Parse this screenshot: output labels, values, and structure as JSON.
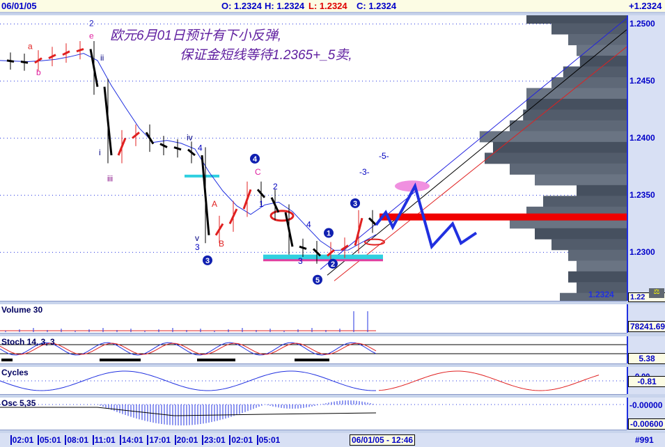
{
  "header": {
    "date": "06/01/05",
    "open": "O: 1.2324",
    "high": "H: 1.2324",
    "low": "L: 1.2324",
    "close": "C: 1.2324",
    "last": "+1.2324"
  },
  "annotation": {
    "line1": "欧元6月01日预计有下小反弹,",
    "line2": "保证金短线等待1.2365+_5卖,"
  },
  "chart_data": {
    "type": "line",
    "price_axis": {
      "ticks": [
        "1.2500",
        "1.2450",
        "1.2400",
        "1.2350",
        "1.2300"
      ],
      "ylim": [
        1.226,
        1.251
      ],
      "current": "1.2324",
      "current_axis": "1.22"
    },
    "time_ticks": [
      "02:01",
      "05:01",
      "08:01",
      "11:01",
      "14:01",
      "17:01",
      "20:01",
      "23:01",
      "02:01",
      "05:01"
    ],
    "cursor_time": "06/01/05 - 12:46",
    "price": [
      1.2468,
      1.2467,
      1.2466,
      1.247,
      1.2473,
      1.2476,
      1.2478,
      1.2445,
      1.2385,
      1.24,
      1.2405,
      1.2395,
      1.2392,
      1.239,
      1.2385,
      1.2315,
      1.2325,
      1.2338,
      1.2355,
      1.2348,
      1.2335,
      1.2305,
      1.2303,
      1.2297,
      1.2302,
      1.2306,
      1.233,
      1.2324
    ],
    "projection": [
      [
        27,
        1.2324
      ],
      [
        27.7,
        1.2335
      ],
      [
        28.2,
        1.2322
      ],
      [
        29.8,
        1.2358
      ],
      [
        31,
        1.2305
      ],
      [
        32.5,
        1.2325
      ],
      [
        33.1,
        1.2308
      ],
      [
        34.2,
        1.2317
      ]
    ],
    "volume_profile": [
      60,
      45,
      35,
      30,
      28,
      38,
      45,
      60,
      60,
      62,
      70,
      88,
      80,
      85,
      70,
      55,
      30,
      50,
      60,
      70,
      55,
      45,
      35,
      30,
      35,
      30,
      40
    ],
    "wave_labels": [
      {
        "t": "2",
        "x": 6.4,
        "p": 1.2498,
        "c": "#2020c0"
      },
      {
        "t": "e",
        "x": 6.4,
        "p": 1.2487,
        "c": "#e020a0"
      },
      {
        "t": "a",
        "x": 2,
        "p": 1.2478,
        "c": "#e02020"
      },
      {
        "t": "b",
        "x": 2.6,
        "p": 1.2455,
        "c": "#e020a0"
      },
      {
        "t": "ii",
        "x": 7.2,
        "p": 1.2468,
        "c": "#000080"
      },
      {
        "t": "i",
        "x": 7.1,
        "p": 1.2385,
        "c": "#000080"
      },
      {
        "t": "iii",
        "x": 7.7,
        "p": 1.2362,
        "c": "#800080"
      },
      {
        "t": "iv",
        "x": 13.4,
        "p": 1.2398,
        "c": "#000080"
      },
      {
        "t": "4",
        "x": 14.2,
        "p": 1.2389,
        "c": "#0000c0"
      },
      {
        "t": "A",
        "x": 15.2,
        "p": 1.234,
        "c": "#e02020"
      },
      {
        "t": "v",
        "x": 14,
        "p": 1.231,
        "c": "#000080"
      },
      {
        "t": "3",
        "x": 14,
        "p": 1.2302,
        "c": "#0000c0"
      },
      {
        "t": "B",
        "x": 15.7,
        "p": 1.2305,
        "c": "#e02020"
      },
      {
        "t": "C",
        "x": 18.3,
        "p": 1.2368,
        "c": "#e020a0"
      },
      {
        "t": "2",
        "x": 19.6,
        "p": 1.2355,
        "c": "#0000c0"
      },
      {
        "t": "1",
        "x": 18.6,
        "p": 1.234,
        "c": "#0000c0"
      },
      {
        "t": "4",
        "x": 22,
        "p": 1.2322,
        "c": "#0000c0"
      },
      {
        "t": "3",
        "x": 21.4,
        "p": 1.229,
        "c": "#0000c0"
      },
      {
        "t": "-3-",
        "x": 25.8,
        "p": 1.2368,
        "c": "#0000c0"
      },
      {
        "t": "-5-",
        "x": 27.2,
        "p": 1.2382,
        "c": "#0000c0"
      }
    ],
    "circled": [
      {
        "t": "4",
        "x": 18.3,
        "p": 1.2382
      },
      {
        "t": "3",
        "x": 14.9,
        "p": 1.2293
      },
      {
        "t": "5",
        "x": 22.8,
        "p": 1.2276
      },
      {
        "t": "2",
        "x": 23.9,
        "p": 1.229
      },
      {
        "t": "1",
        "x": 23.6,
        "p": 1.2317
      },
      {
        "t": "3",
        "x": 25.5,
        "p": 1.2343
      }
    ]
  },
  "panels": {
    "volume": {
      "label": "Volume 30",
      "value": "78241.69"
    },
    "stoch": {
      "label": "Stoch 14, 3, 3",
      "value": "5.38"
    },
    "cycles": {
      "label": "Cycles",
      "value": "-0.81",
      "axis": "0.00"
    },
    "osc": {
      "label": "Osc 5,35",
      "value_top": "-0.00000",
      "value_bottom": "-0.00600"
    }
  },
  "footer": {
    "bar_number": "#991"
  }
}
